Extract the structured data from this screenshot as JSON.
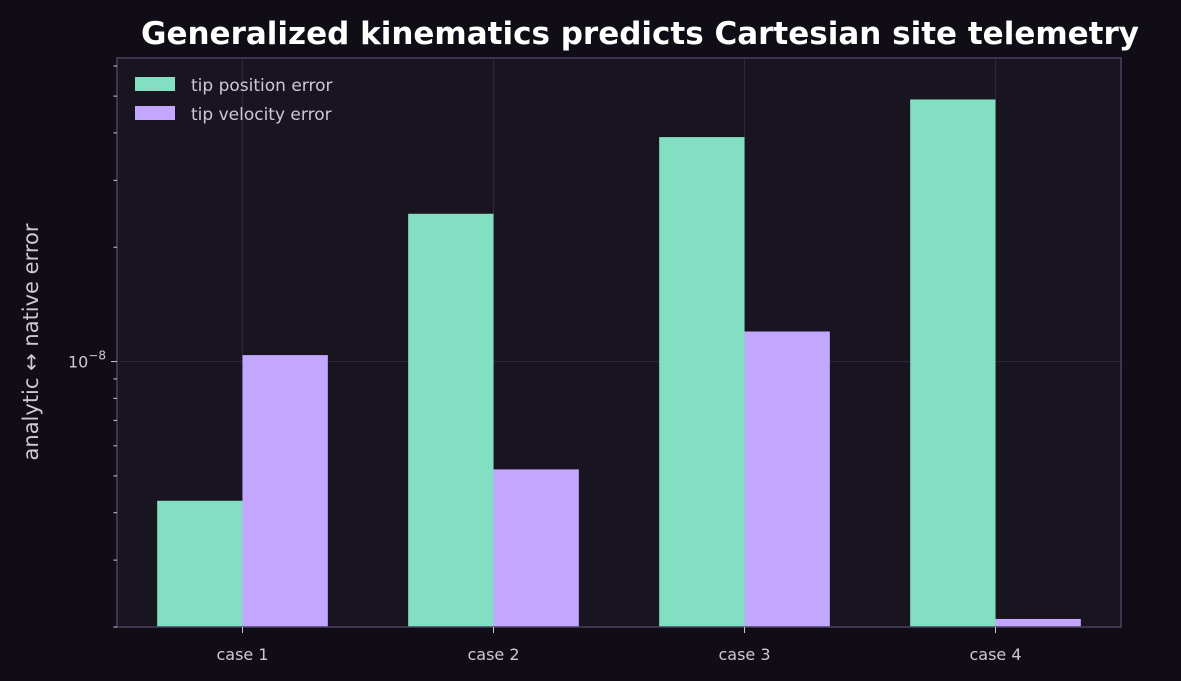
{
  "chart_data": {
    "type": "bar",
    "title": "Generalized kinematics predicts Cartesian site telemetry",
    "xlabel": "",
    "ylabel": "analytic ↔ native error",
    "categories": [
      "case 1",
      "case 2",
      "case 3",
      "case 4"
    ],
    "series": [
      {
        "name": "tip position error",
        "values": [
          4.3e-09,
          2.45e-08,
          3.9e-08,
          4.9e-08
        ],
        "color": "#82dfc2"
      },
      {
        "name": "tip velocity error",
        "values": [
          1.04e-08,
          5.2e-09,
          1.2e-08,
          2.1e-09
        ],
        "color": "#c3a6fe"
      }
    ],
    "yscale": "log",
    "ylim": [
      2e-09,
      6.3e-08
    ],
    "yticks": [
      {
        "value": 1e-08,
        "base": "10",
        "exp": "−8"
      }
    ],
    "grid": true,
    "legend": "top-left",
    "colors": {
      "background": "#110d17",
      "plot_area": "#181520",
      "frame": "#4a4260",
      "grid": "#2c2739",
      "text": "#cdc8d6",
      "title": "#ffffff"
    }
  }
}
